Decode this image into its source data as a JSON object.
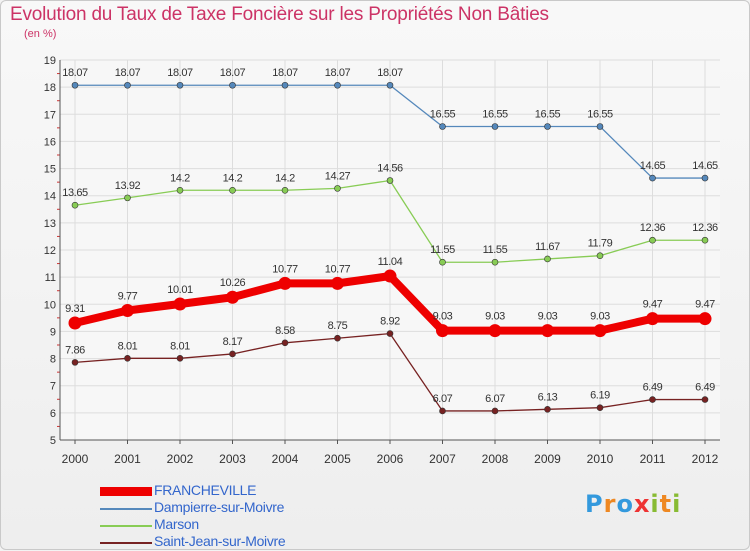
{
  "chart_data": {
    "type": "line",
    "title": "Evolution du Taux de Taxe Foncière sur les Propriétés Non Bâties",
    "ylabel": "(en %)",
    "xlabel": "",
    "ylim": [
      5,
      19
    ],
    "yticks": [
      "5",
      "6",
      "7",
      "8",
      "9",
      "10",
      "11",
      "12",
      "13",
      "14",
      "15",
      "16",
      "17",
      "18",
      "19"
    ],
    "categories": [
      "2000",
      "2001",
      "2002",
      "2003",
      "2004",
      "2005",
      "2006",
      "2007",
      "2008",
      "2009",
      "2010",
      "2011",
      "2012"
    ],
    "series": [
      {
        "name": "Dampierre-sur-Moivre",
        "color": "#5588bb",
        "values": [
          18.07,
          18.07,
          18.07,
          18.07,
          18.07,
          18.07,
          18.07,
          16.55,
          16.55,
          16.55,
          16.55,
          14.65,
          14.65
        ],
        "labels": [
          "18.07",
          "18.07",
          "18.07",
          "18.07",
          "18.07",
          "18.07",
          "18.07",
          "16.55",
          "16.55",
          "16.55",
          "16.55",
          "14.65",
          "14.65"
        ]
      },
      {
        "name": "Marson",
        "color": "#88cc55",
        "values": [
          13.65,
          13.92,
          14.2,
          14.2,
          14.2,
          14.27,
          14.56,
          11.55,
          11.55,
          11.67,
          11.79,
          12.36,
          12.36
        ],
        "labels": [
          "13.65",
          "13.92",
          "14.2",
          "14.2",
          "14.2",
          "14.27",
          "14.56",
          "11.55",
          "11.55",
          "11.67",
          "11.79",
          "12.36",
          "12.36"
        ]
      },
      {
        "name": "FRANCHEVILLE",
        "color": "#ee0000",
        "values": [
          9.31,
          9.77,
          10.01,
          10.26,
          10.77,
          10.77,
          11.04,
          9.03,
          9.03,
          9.03,
          9.03,
          9.47,
          9.47
        ],
        "labels": [
          "9.31",
          "9.77",
          "10.01",
          "10.26",
          "10.77",
          "10.77",
          "11.04",
          "9.03",
          "9.03",
          "9.03",
          "9.03",
          "9.47",
          "9.47"
        ]
      },
      {
        "name": "Saint-Jean-sur-Moivre",
        "color": "#772222",
        "values": [
          7.86,
          8.01,
          8.01,
          8.17,
          8.58,
          8.75,
          8.92,
          6.07,
          6.07,
          6.13,
          6.19,
          6.49,
          6.49
        ],
        "labels": [
          "7.86",
          "8.01",
          "8.01",
          "8.17",
          "8.58",
          "8.75",
          "8.92",
          "6.07",
          "6.07",
          "6.13",
          "6.19",
          "6.49",
          "6.49"
        ]
      }
    ],
    "legend": [
      {
        "name": "FRANCHEVILLE",
        "color": "#ee0000",
        "thick": true
      },
      {
        "name": "Dampierre-sur-Moivre",
        "color": "#5588bb",
        "thick": false
      },
      {
        "name": "Marson",
        "color": "#88cc55",
        "thick": false
      },
      {
        "name": "Saint-Jean-sur-Moivre",
        "color": "#772222",
        "thick": false
      }
    ]
  },
  "logo": {
    "text": "Proxiti",
    "letters": [
      {
        "ch": "P",
        "color": "#3399dd"
      },
      {
        "ch": "r",
        "color": "#ee8822"
      },
      {
        "ch": "o",
        "color": "#3399dd"
      },
      {
        "ch": "x",
        "color": "#ee3333"
      },
      {
        "ch": "i",
        "color": "#88bb33"
      },
      {
        "ch": "t",
        "color": "#ee8822"
      },
      {
        "ch": "i",
        "color": "#88bb33"
      }
    ]
  }
}
